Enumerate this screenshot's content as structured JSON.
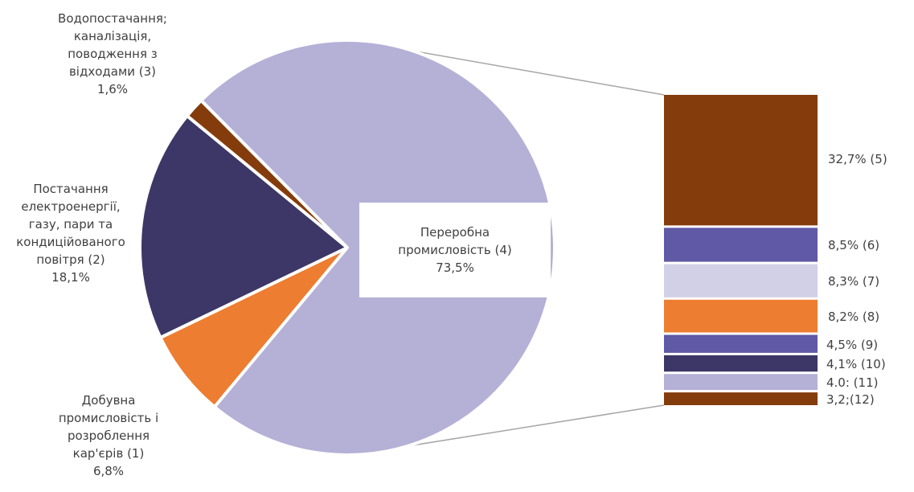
{
  "chart_data": {
    "type": "bar-of-pie",
    "pie": [
      {
        "id": "s1",
        "name": "Добувна промисловість і розроблення кар'єрів (1)",
        "label_lines": [
          "Добувна",
          "промисловість і",
          "розроблення",
          "кар'єрів (1)"
        ],
        "value_text": "6,8%",
        "value": 6.8,
        "color": "#ED7D31"
      },
      {
        "id": "s2",
        "name": "Постачання електроенергії, газу, пари та кондиційованого повітря (2)",
        "label_lines": [
          "Постачання",
          "електроенергії,",
          "газу, пари та",
          "кондиційованого",
          "повітря (2)"
        ],
        "value_text": "18,1%",
        "value": 18.1,
        "color": "#3C3766"
      },
      {
        "id": "s3",
        "name": "Водопостачання; каналізація, поводження з відходами (3)",
        "label_lines": [
          "Водопостачання;",
          "каналізація,",
          "поводження з",
          "відходами (3)"
        ],
        "value_text": "1,6%",
        "value": 1.6,
        "color": "#843C0C"
      },
      {
        "id": "s4",
        "name": "Переробна промисловість (4)",
        "label_lines": [
          "Переробна",
          "промисловість (4)"
        ],
        "value_text": "73,5%",
        "value": 73.5,
        "color": "#B4B0D6"
      }
    ],
    "bar": [
      {
        "label": "32,7% (5)",
        "value": 32.7,
        "color": "#843C0C"
      },
      {
        "label": "8,5% (6)",
        "value": 8.5,
        "color": "#5F59A6"
      },
      {
        "label": "8,3% (7)",
        "value": 8.3,
        "color": "#D2D0E6"
      },
      {
        "label": "8,2% (8)",
        "value": 8.2,
        "color": "#ED7D31"
      },
      {
        "label": "4,5% (9)",
        "value": 4.5,
        "color": "#5F59A6"
      },
      {
        "label": "4,1% (10)",
        "value": 4.1,
        "color": "#3C3766"
      },
      {
        "label": "4.0: (11)",
        "value": 4.0,
        "color": "#B4B0D6"
      },
      {
        "label": "3,2;(12)",
        "value": 3.2,
        "color": "#843C0C"
      }
    ]
  }
}
